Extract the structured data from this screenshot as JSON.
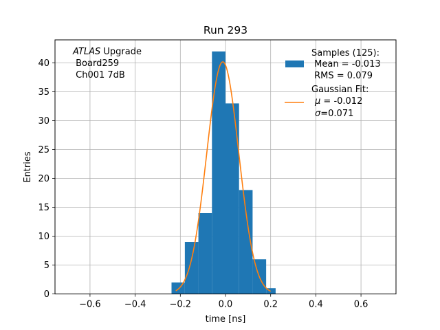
{
  "chart_data": {
    "type": "bar",
    "title": "Run 293",
    "xlabel": "time [ns]",
    "ylabel": "Entries",
    "xlim": [
      -0.755,
      0.755
    ],
    "ylim": [
      0,
      44
    ],
    "xticks": [
      -0.6,
      -0.4,
      -0.2,
      0.0,
      0.2,
      0.4,
      0.6
    ],
    "xtick_labels": [
      "−0.6",
      "−0.4",
      "−0.2",
      "0.0",
      "0.2",
      "0.4",
      "0.6"
    ],
    "yticks": [
      0,
      5,
      10,
      15,
      20,
      25,
      30,
      35,
      40
    ],
    "ytick_labels": [
      "0",
      "5",
      "10",
      "15",
      "20",
      "25",
      "30",
      "35",
      "40"
    ],
    "grid": true,
    "legend_position": "top-right",
    "histogram": {
      "name": "Samples (125):",
      "color": "#1f77b4",
      "bin_edges": [
        -0.239,
        -0.18,
        -0.12,
        -0.06,
        0.0,
        0.06,
        0.12,
        0.18,
        0.222
      ],
      "counts": [
        2,
        9,
        14,
        42,
        33,
        18,
        6,
        1
      ]
    },
    "fit": {
      "name": "Gaussian Fit:",
      "color": "#ff7f0e",
      "mu": -0.012,
      "sigma": 0.071,
      "amplitude": 40.2,
      "x_range": [
        -0.22,
        0.2
      ]
    },
    "legend": {
      "samples_line1": "Samples (125):",
      "samples_line2": " Mean = -0.013",
      "samples_line3": " RMS = 0.079",
      "fit_line1": "Gaussian Fit:",
      "fit_line2_mu": "μ",
      "fit_line2_rest": " = -0.012",
      "fit_line3_sigma": "σ",
      "fit_line3_rest": "=0.071"
    },
    "annotation": {
      "line1_italic": "ATLAS",
      "line1_rest": " Upgrade",
      "line2": " Board259",
      "line3": " Ch001 7dB"
    }
  }
}
